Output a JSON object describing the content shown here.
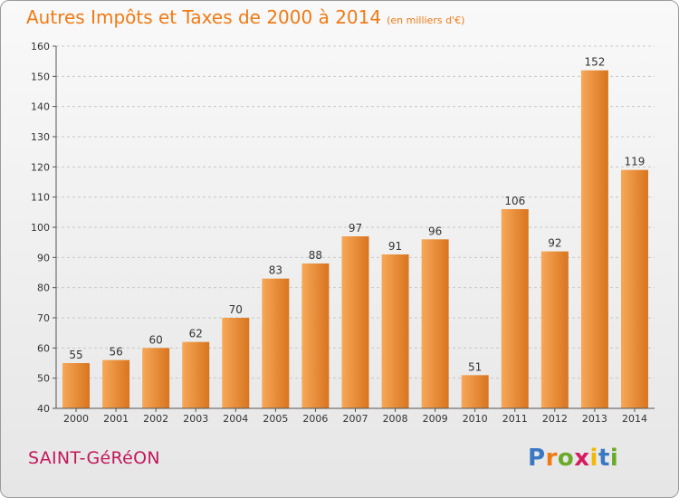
{
  "header": {
    "title": "Autres Impôts et Taxes de 2000 à 2014",
    "subtitle": "(en milliers d'€)"
  },
  "footer": {
    "town": "SAINT-GéRéON",
    "logo_letters": [
      "P",
      "r",
      "o",
      "x",
      "i",
      "t",
      "i"
    ],
    "logo_colors": [
      "#3b78c4",
      "#f07a14",
      "#6aaa2a",
      "#d81b60",
      "#f2b705",
      "#3b78c4",
      "#6aaa2a"
    ]
  },
  "colors": {
    "bar_light": "#f6a858",
    "bar_dark": "#d9741e",
    "axis": "#555555",
    "grid": "#c8c8c8",
    "title": "#f07a14"
  },
  "chart_data": {
    "type": "bar",
    "title": "Autres Impôts et Taxes de 2000 à 2014",
    "subtitle": "(en milliers d'€)",
    "xlabel": "",
    "ylabel": "",
    "categories": [
      "2000",
      "2001",
      "2002",
      "2003",
      "2004",
      "2005",
      "2006",
      "2007",
      "2008",
      "2009",
      "2010",
      "2011",
      "2012",
      "2013",
      "2014"
    ],
    "values": [
      55,
      56,
      60,
      62,
      70,
      83,
      88,
      97,
      91,
      96,
      51,
      106,
      92,
      152,
      119
    ],
    "ylim": [
      40,
      160
    ],
    "yticks": [
      40,
      50,
      60,
      70,
      80,
      90,
      100,
      110,
      120,
      130,
      140,
      150,
      160
    ],
    "grid": "horizontal dashed",
    "legend": "none"
  }
}
